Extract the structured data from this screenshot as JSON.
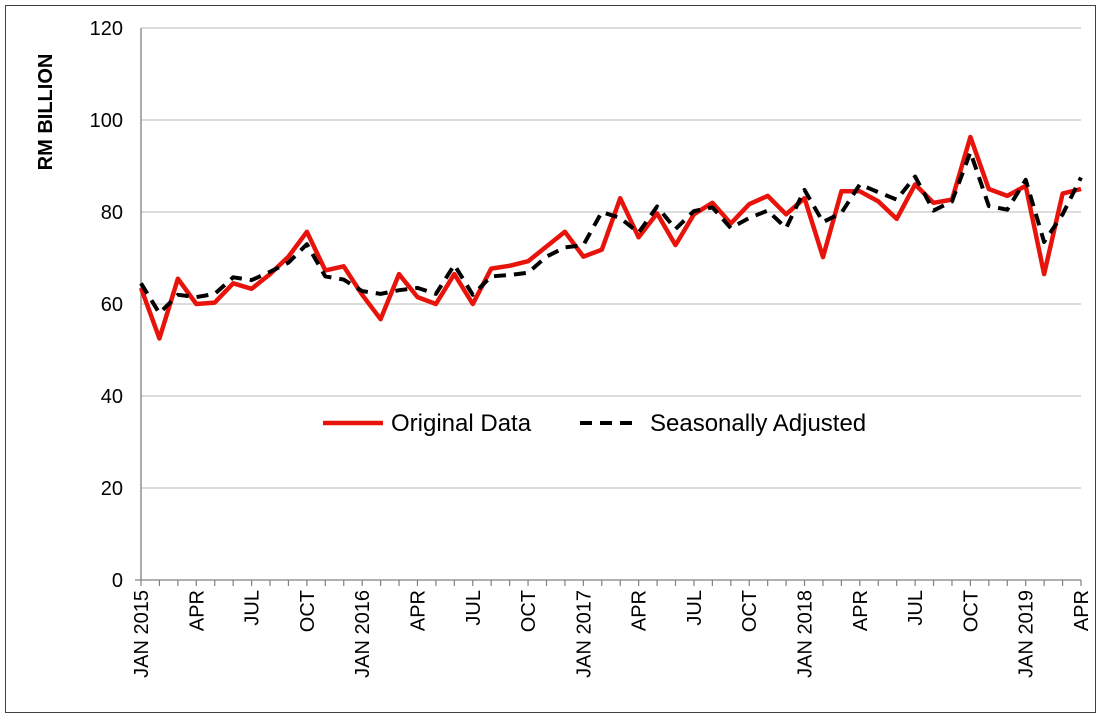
{
  "chart_data": {
    "type": "line",
    "ylabel": "RM BILLION",
    "xlabel": "",
    "ylim": [
      0,
      120
    ],
    "yticks": [
      0,
      20,
      40,
      60,
      80,
      100,
      120
    ],
    "grid": "horizontal",
    "legend_placement": "center",
    "x": [
      "Jan 2015",
      "Feb 2015",
      "Mar 2015",
      "Apr 2015",
      "May 2015",
      "Jun 2015",
      "Jul 2015",
      "Aug 2015",
      "Sep 2015",
      "Oct 2015",
      "Nov 2015",
      "Dec 2015",
      "Jan 2016",
      "Feb 2016",
      "Mar 2016",
      "Apr 2016",
      "May 2016",
      "Jun 2016",
      "Jul 2016",
      "Aug 2016",
      "Sep 2016",
      "Oct 2016",
      "Nov 2016",
      "Dec 2016",
      "Jan 2017",
      "Feb 2017",
      "Mar 2017",
      "Apr 2017",
      "May 2017",
      "Jun 2017",
      "Jul 2017",
      "Aug 2017",
      "Sep 2017",
      "Oct 2017",
      "Nov 2017",
      "Dec 2017",
      "Jan 2018",
      "Feb 2018",
      "Mar 2018",
      "Apr 2018",
      "May 2018",
      "Jun 2018",
      "Jul 2018",
      "Aug 2018",
      "Sep 2018",
      "Oct 2018",
      "Nov 2018",
      "Dec 2018",
      "Jan 2019",
      "Feb 2019",
      "Mar 2019",
      "Apr 2019"
    ],
    "tick_labels": [
      {
        "index": 0,
        "label": "JAN 2015"
      },
      {
        "index": 3,
        "label": "APR"
      },
      {
        "index": 6,
        "label": "JUL"
      },
      {
        "index": 9,
        "label": "OCT"
      },
      {
        "index": 12,
        "label": "JAN 2016"
      },
      {
        "index": 15,
        "label": "APR"
      },
      {
        "index": 18,
        "label": "JUL"
      },
      {
        "index": 21,
        "label": "OCT"
      },
      {
        "index": 24,
        "label": "JAN 2017"
      },
      {
        "index": 27,
        "label": "APR"
      },
      {
        "index": 30,
        "label": "JUL"
      },
      {
        "index": 33,
        "label": "OCT"
      },
      {
        "index": 36,
        "label": "JAN 2018"
      },
      {
        "index": 39,
        "label": "APR"
      },
      {
        "index": 42,
        "label": "JUL"
      },
      {
        "index": 45,
        "label": "OCT"
      },
      {
        "index": 48,
        "label": "JAN 2019"
      },
      {
        "index": 51,
        "label": "APR"
      }
    ],
    "series": [
      {
        "name": "Original Data",
        "color": "#e8140c",
        "style": "solid",
        "values": [
          63.5,
          52.5,
          65.5,
          60.0,
          60.3,
          64.5,
          63.3,
          66.5,
          70.3,
          75.7,
          67.3,
          68.2,
          62.0,
          56.7,
          66.5,
          61.5,
          60.0,
          66.5,
          60.0,
          67.7,
          68.3,
          69.3,
          72.5,
          75.7,
          70.3,
          71.8,
          83.0,
          74.5,
          79.7,
          72.8,
          79.5,
          82.0,
          77.5,
          81.7,
          83.5,
          79.5,
          83.0,
          70.2,
          84.5,
          84.5,
          82.3,
          78.5,
          86.0,
          82.0,
          82.7,
          96.3,
          85.0,
          83.5,
          85.7,
          66.5,
          84.0,
          85.0
        ]
      },
      {
        "name": "Seasonally Adjusted",
        "color": "#000000",
        "style": "dashed",
        "values": [
          64.5,
          58.0,
          62.0,
          61.5,
          62.2,
          65.8,
          65.2,
          67.0,
          69.0,
          73.0,
          66.0,
          65.3,
          62.8,
          62.2,
          63.0,
          63.5,
          62.2,
          68.5,
          62.0,
          66.0,
          66.3,
          66.8,
          70.3,
          72.3,
          72.8,
          80.0,
          78.7,
          75.5,
          81.2,
          76.3,
          80.2,
          81.0,
          76.5,
          78.7,
          80.3,
          76.5,
          84.8,
          77.8,
          79.8,
          86.0,
          84.3,
          82.7,
          87.7,
          80.3,
          82.3,
          93.0,
          81.3,
          80.5,
          87.0,
          73.5,
          79.5,
          87.5
        ]
      }
    ]
  }
}
